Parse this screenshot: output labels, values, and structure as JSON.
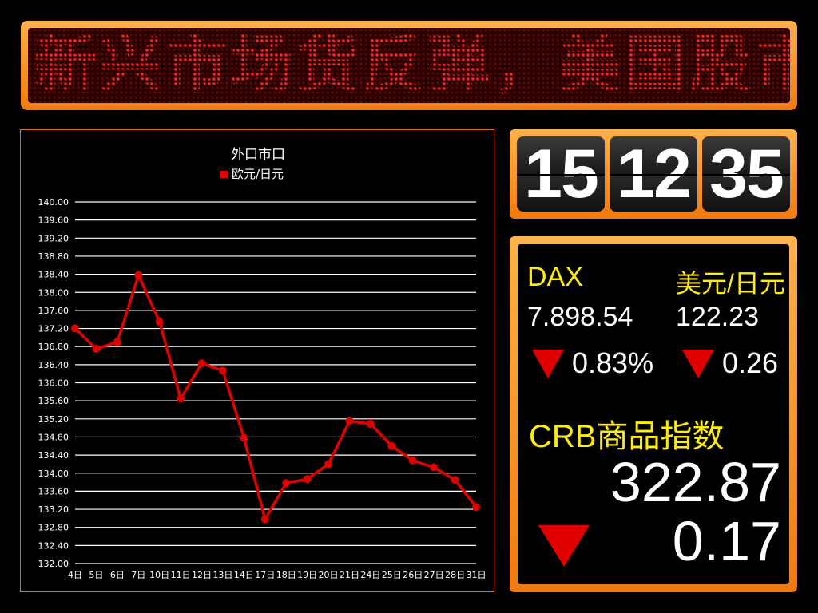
{
  "ticker": {
    "text": "新兴市场货反弹，美国股市"
  },
  "clock": {
    "hours": "15",
    "minutes": "12",
    "seconds": "35"
  },
  "market": {
    "dax": {
      "label": "DAX",
      "value": "7.898.54",
      "change": "0.83%",
      "direction": "down"
    },
    "usdjpy": {
      "label": "美元/日元",
      "value": "122.23",
      "change": "0.26",
      "direction": "down"
    },
    "crb": {
      "label": "CRB商品指数",
      "value": "322.87",
      "change": "0.17",
      "direction": "down"
    }
  },
  "colors": {
    "accent": "#f08a18",
    "down": "#e00000",
    "line": "#e00000",
    "label": "#ffee00"
  },
  "chart_data": {
    "type": "line",
    "title": "外口市口",
    "series": [
      {
        "name": "欧元/日元",
        "color": "#e00000",
        "values": [
          137.2,
          136.75,
          136.9,
          138.38,
          137.35,
          135.65,
          136.43,
          136.27,
          134.78,
          132.98,
          133.78,
          133.87,
          134.2,
          135.15,
          135.09,
          134.6,
          134.28,
          134.13,
          133.85,
          133.25
        ]
      }
    ],
    "categories": [
      "4日",
      "5日",
      "6日",
      "7日",
      "10日",
      "11日",
      "12日",
      "13日",
      "14日",
      "17日",
      "18日",
      "19日",
      "20日",
      "21日",
      "24日",
      "25日",
      "26日",
      "27日",
      "28日",
      "31日"
    ],
    "ylim": [
      132.0,
      140.0
    ],
    "ystep": 0.4,
    "yticks": [
      "140.00",
      "139.60",
      "139.20",
      "138.80",
      "138.40",
      "138.00",
      "137.60",
      "137.20",
      "136.80",
      "136.40",
      "136.00",
      "135.60",
      "135.20",
      "134.80",
      "134.40",
      "134.00",
      "133.60",
      "133.20",
      "132.80",
      "132.40",
      "132.00"
    ],
    "grid": true,
    "legend": "top"
  }
}
